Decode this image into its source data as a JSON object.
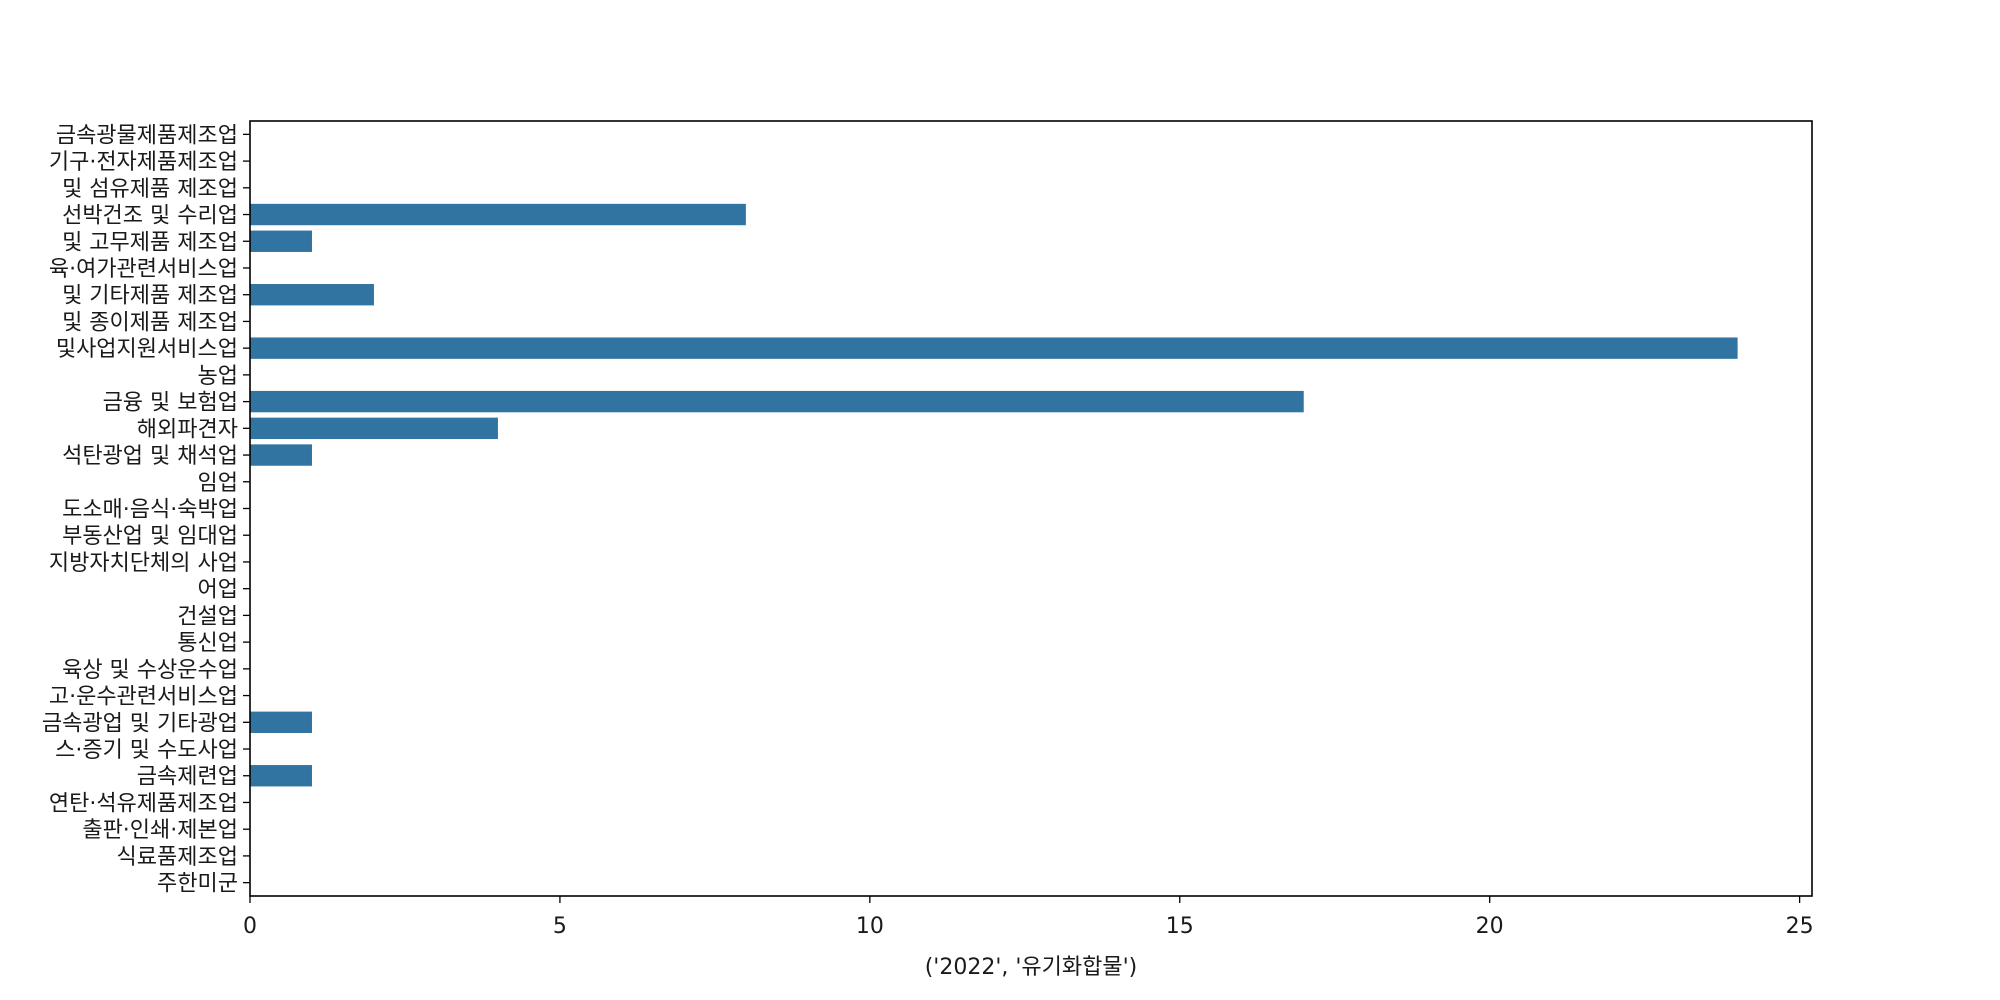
{
  "chart_data": {
    "type": "bar",
    "orientation": "horizontal",
    "categories": [
      "금속광물제품제조업",
      "기구·전자제품제조업",
      "및 섬유제품 제조업",
      "선박건조 및 수리업",
      "및 고무제품 제조업",
      "육·여가관련서비스업",
      "및 기타제품 제조업",
      "및 종이제품 제조업",
      "및사업지원서비스업",
      "농업",
      "금융 및 보험업",
      "해외파견자",
      "석탄광업 및 채석업",
      "임업",
      "도소매·음식·숙박업",
      "부동산업 및 임대업",
      "지방자치단체의 사업",
      "어업",
      "건설업",
      "통신업",
      "육상 및 수상운수업",
      "고·운수관련서비스업",
      "금속광업 및 기타광업",
      "스·증기 및 수도사업",
      "금속제련업",
      "연탄·석유제품제조업",
      "출판·인쇄·제본업",
      "식료품제조업",
      "주한미군"
    ],
    "values": [
      0,
      0,
      0,
      8,
      1,
      0,
      2,
      0,
      24,
      0,
      17,
      4,
      1,
      0,
      0,
      0,
      0,
      0,
      0,
      0,
      0,
      0,
      1,
      0,
      1,
      0,
      0,
      0,
      0
    ],
    "xlabel": "('2022', '유기화합물')",
    "ylabel": "",
    "title": "",
    "xlim": [
      0,
      25.2
    ],
    "xticks": [
      0,
      5,
      10,
      15,
      20,
      25
    ],
    "grid": false,
    "bar_color": "#3274a1"
  }
}
